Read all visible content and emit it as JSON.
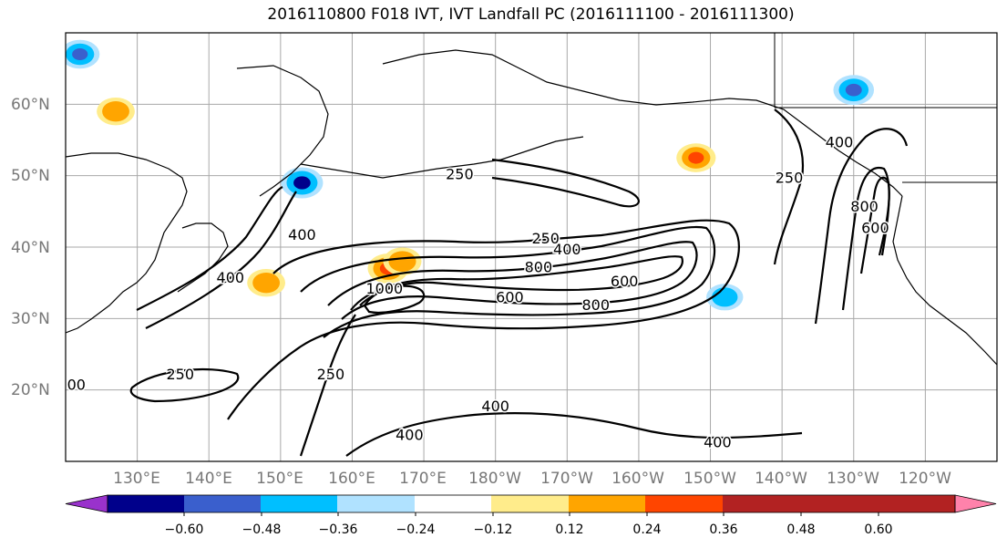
{
  "title": "2016110800 F018 IVT, IVT Landfall PC (2016111100 - 2016111300)",
  "map": {
    "projection": "cylindrical",
    "lon_range": [
      120,
      250
    ],
    "lat_range": [
      10,
      70
    ],
    "lat_labels": [
      "20°N",
      "30°N",
      "40°N",
      "50°N",
      "60°N"
    ],
    "lon_labels": [
      "130°E",
      "140°E",
      "150°E",
      "160°E",
      "170°E",
      "180°W",
      "170°W",
      "160°W",
      "150°W",
      "140°W",
      "130°W",
      "120°W"
    ],
    "grid": true,
    "contour_color": "#000000",
    "contour_labels": [
      {
        "text": "250",
        "lon": 187,
        "lat": 40.5
      },
      {
        "text": "400",
        "lon": 190,
        "lat": 39
      },
      {
        "text": "800",
        "lon": 186,
        "lat": 36.5
      },
      {
        "text": "600",
        "lon": 182,
        "lat": 32.3
      },
      {
        "text": "800",
        "lon": 194,
        "lat": 31.2
      },
      {
        "text": "600",
        "lon": 198,
        "lat": 34.5
      },
      {
        "text": "250",
        "lon": 175,
        "lat": 49.5
      },
      {
        "text": "400",
        "lon": 153,
        "lat": 41
      },
      {
        "text": "400",
        "lon": 143,
        "lat": 35
      },
      {
        "text": "250",
        "lon": 136,
        "lat": 21.5
      },
      {
        "text": "250",
        "lon": 157,
        "lat": 21.5
      },
      {
        "text": "400",
        "lon": 180,
        "lat": 17
      },
      {
        "text": "400",
        "lon": 168,
        "lat": 13
      },
      {
        "text": "400",
        "lon": 211,
        "lat": 12
      },
      {
        "text": "250",
        "lon": 221,
        "lat": 49
      },
      {
        "text": "400",
        "lon": 228,
        "lat": 54
      },
      {
        "text": "800",
        "lon": 231.5,
        "lat": 45
      },
      {
        "text": "600",
        "lon": 233,
        "lat": 42
      },
      {
        "text": "1000",
        "lon": 164.5,
        "lat": 33.5
      },
      {
        "text": "00",
        "lon": 121.5,
        "lat": 20
      }
    ]
  },
  "colorbar": {
    "ticks": [
      "−0.60",
      "−0.48",
      "−0.36",
      "−0.24",
      "−0.12",
      "0.12",
      "0.24",
      "0.36",
      "0.48",
      "0.60"
    ],
    "levels": [
      -0.6,
      -0.48,
      -0.36,
      -0.24,
      -0.12,
      0.12,
      0.24,
      0.36,
      0.48,
      0.6
    ],
    "colors": [
      "#9932cc",
      "#00008b",
      "#3a5fcd",
      "#00bfff",
      "#b0e2ff",
      "#ffffff",
      "#ffec8b",
      "#ffa500",
      "#ff4500",
      "#b22222",
      "#ff82ab"
    ]
  },
  "chart_data": {
    "type": "heatmap",
    "title": "2016110800 F018 IVT, IVT Landfall PC (2016111100 - 2016111300)",
    "contours": [
      {
        "level": 250,
        "center_lon": 185,
        "center_lat": 36
      },
      {
        "level": 400,
        "center_lon": 185,
        "center_lat": 35
      },
      {
        "level": 600,
        "center_lon": 183,
        "center_lat": 34
      },
      {
        "level": 800,
        "center_lon": 180,
        "center_lat": 34
      },
      {
        "level": 1000,
        "center_lon": 165,
        "center_lat": 34
      }
    ],
    "anomalies": [
      {
        "lon": 153,
        "lat": 49,
        "value": -0.5
      },
      {
        "lon": 165,
        "lat": 37,
        "value": 0.45
      },
      {
        "lon": 208,
        "lat": 52.5,
        "value": 0.4
      },
      {
        "lon": 148,
        "lat": 35,
        "value": 0.35
      },
      {
        "lon": 167,
        "lat": 38,
        "value": 0.36
      },
      {
        "lon": 230,
        "lat": 62,
        "value": -0.45
      },
      {
        "lon": 212,
        "lat": 33,
        "value": -0.3
      },
      {
        "lon": 127,
        "lat": 59,
        "value": 0.35
      },
      {
        "lon": 122,
        "lat": 67,
        "value": -0.4
      }
    ]
  }
}
